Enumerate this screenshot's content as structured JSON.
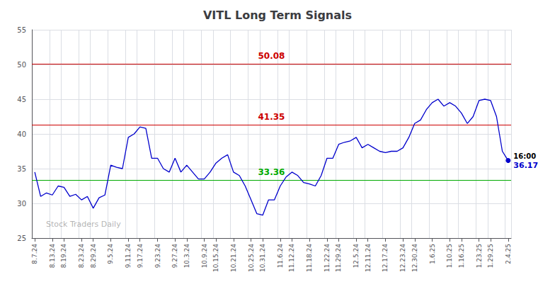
{
  "chart_data": {
    "type": "line",
    "title": "VITL Long Term Signals",
    "categories": [
      "8.7.24",
      null,
      null,
      "8.13.24",
      null,
      "8.19.24",
      null,
      null,
      "8.23.24",
      null,
      "8.29.24",
      null,
      null,
      "9.5.24",
      null,
      null,
      "9.11.24",
      null,
      "9.17.24",
      null,
      null,
      "9.23.24",
      null,
      null,
      "9.27.24",
      null,
      "10.3.24",
      null,
      null,
      "10.9.24",
      null,
      "10.15.24",
      null,
      null,
      "10.21.24",
      null,
      null,
      "10.25.24",
      null,
      "10.31.24",
      null,
      null,
      "11.6.24",
      null,
      "11.12.24",
      null,
      null,
      "11.18.24",
      null,
      null,
      "11.22.24",
      null,
      "11.29.24",
      null,
      null,
      "12.5.24",
      null,
      "12.11.24",
      null,
      null,
      "12.17.24",
      null,
      null,
      "12.23.24",
      null,
      "12.30.24",
      null,
      null,
      "1.6.25",
      null,
      null,
      "1.10.25",
      null,
      "1.16.25",
      null,
      null,
      "1.23.25",
      null,
      "1.29.25",
      null,
      null,
      "2.4.25"
    ],
    "values": [
      34.5,
      31.0,
      31.5,
      31.2,
      32.5,
      32.3,
      31.0,
      31.3,
      30.5,
      31.0,
      29.3,
      30.8,
      31.2,
      35.5,
      35.2,
      35.0,
      39.5,
      40.0,
      41.0,
      40.8,
      36.5,
      36.5,
      35.0,
      34.5,
      36.5,
      34.5,
      35.5,
      34.5,
      33.5,
      33.5,
      34.5,
      35.8,
      36.5,
      37.0,
      34.5,
      34.0,
      32.5,
      30.5,
      28.5,
      28.3,
      30.5,
      30.5,
      32.5,
      33.8,
      34.5,
      34.0,
      33.0,
      32.8,
      32.5,
      34.0,
      36.5,
      36.5,
      38.5,
      38.8,
      39.0,
      39.5,
      38.0,
      38.5,
      38.0,
      37.5,
      37.3,
      37.5,
      37.5,
      38.0,
      39.5,
      41.5,
      42.0,
      43.5,
      44.5,
      45.0,
      44.0,
      44.5,
      44.0,
      43.0,
      41.5,
      42.5,
      44.8,
      45.0,
      44.8,
      42.5,
      37.5,
      36.17
    ],
    "color": "#0000cc",
    "ylim": [
      25,
      55
    ],
    "yticks": [
      25,
      30,
      35,
      40,
      45,
      50,
      55
    ],
    "grid": true,
    "hlines": [
      {
        "value": 50.08,
        "label": "50.08",
        "color": "#cc0000"
      },
      {
        "value": 41.35,
        "label": "41.35",
        "color": "#cc0000"
      },
      {
        "value": 33.36,
        "label": "33.36",
        "color": "#00aa00"
      }
    ],
    "last_price": 36.17,
    "last_label": "16:00",
    "watermark": "Stock Traders Daily"
  }
}
